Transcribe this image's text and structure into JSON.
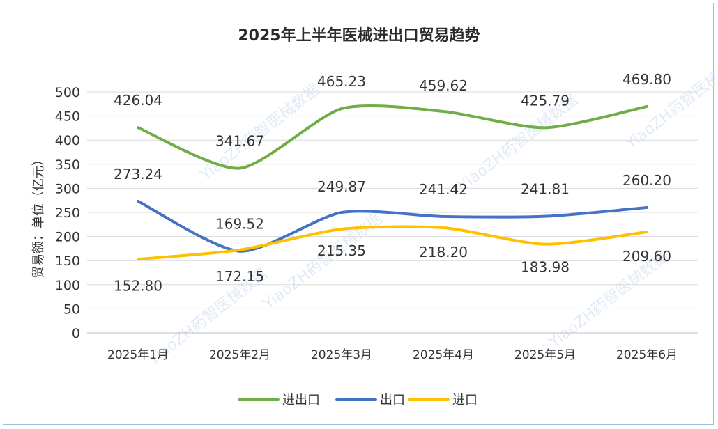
{
  "chart_data": {
    "type": "line",
    "title": "2025年上半年医械进出口贸易趋势",
    "ylabel": "贸易额：单位（亿元）",
    "xlabel": "",
    "categories": [
      "2025年1月",
      "2025年2月",
      "2025年3月",
      "2025年4月",
      "2025年5月",
      "2025年6月"
    ],
    "ylim": [
      0,
      500
    ],
    "yticks": [
      0,
      50,
      100,
      150,
      200,
      250,
      300,
      350,
      400,
      450,
      500
    ],
    "grid": true,
    "legend_position": "bottom",
    "series": [
      {
        "name": "进出口",
        "color": "#70ad47",
        "values": [
          426.04,
          341.67,
          465.23,
          459.62,
          425.79,
          469.8
        ],
        "labels": [
          "426.04",
          "341.67",
          "465.23",
          "459.62",
          "425.79",
          "469.80"
        ]
      },
      {
        "name": "出口",
        "color": "#4472c4",
        "values": [
          273.24,
          169.52,
          249.87,
          241.42,
          241.81,
          260.2
        ],
        "labels": [
          "273.24",
          "169.52",
          "249.87",
          "241.42",
          "241.81",
          "260.20"
        ]
      },
      {
        "name": "进口",
        "color": "#ffc000",
        "values": [
          152.8,
          172.15,
          215.35,
          218.2,
          183.98,
          209.6
        ],
        "labels": [
          "152.80",
          "172.15",
          "215.35",
          "218.20",
          "183.98",
          "209.60"
        ]
      }
    ]
  },
  "watermarks": [
    "YiaoZH药智医械数据",
    "YiaoZH药智医械数据",
    "YiaoZH药智医械数据",
    "YiaoZH药智医械数据",
    "YiaoZH药智医械数据",
    "YiaoZH药智医械数据"
  ]
}
